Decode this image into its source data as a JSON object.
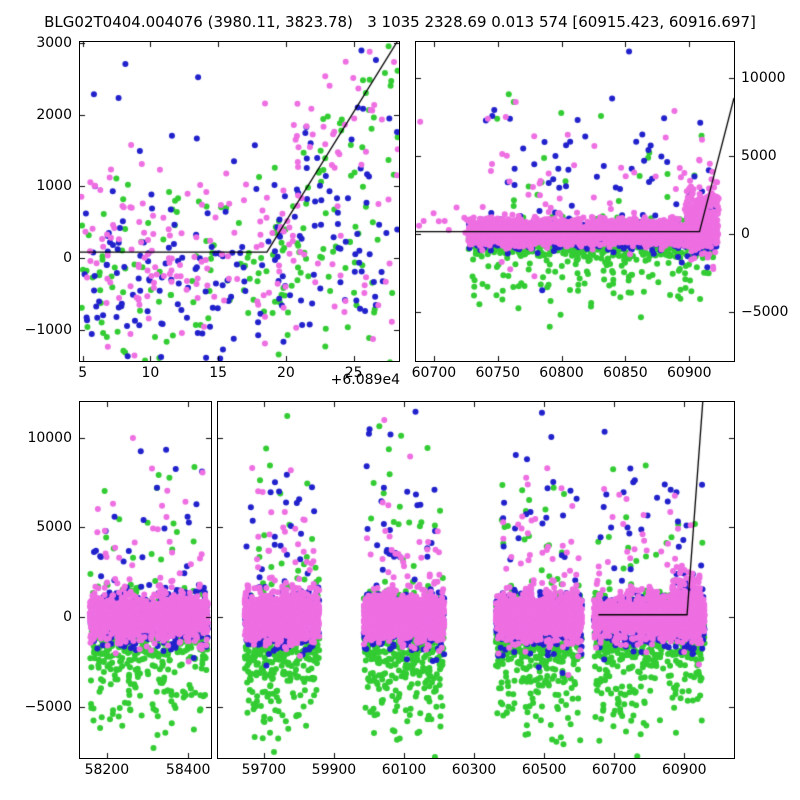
{
  "title": "BLG02T0404.004076 (3980.11, 3823.78)   3 1035 2328.69 0.013 574 [60915.423, 60916.697]",
  "colors": {
    "blue": "#2121cc",
    "green": "#33cc33",
    "violet": "#ee6fe2",
    "line": "#000000",
    "frame": "#000000",
    "background": "#ffffff"
  },
  "chart_data": [
    {
      "id": "panel-tl",
      "name": "event-zoom-panel",
      "type": "scatter",
      "seed": 7,
      "marker_radius": 3,
      "xlim": [
        60894.8,
        60918.35
      ],
      "ylim": [
        -1438,
        3015
      ],
      "xlabel_offset": "+6.089e4",
      "xticks": {
        "values": [
          60895,
          60900,
          60905,
          60910,
          60915
        ],
        "labels": [
          "5",
          "10",
          "15",
          "20",
          "25"
        ]
      },
      "yticks": {
        "side": "left",
        "values": [
          -1000,
          0,
          1000,
          2000,
          3000
        ],
        "labels": [
          "−1000",
          "0",
          "1000",
          "2000",
          "3000"
        ]
      },
      "model_line": [
        [
          60894.8,
          83
        ],
        [
          60908.6,
          83
        ],
        [
          60918.35,
          3060
        ]
      ],
      "clusters": [
        {
          "color": "green",
          "n": 165,
          "x": [
            60894.9,
            60918.3
          ],
          "y_mu": -350,
          "y_sigma": 700,
          "follow": 0.35
        },
        {
          "color": "green",
          "n": 30,
          "x": [
            60909,
            60918.3
          ],
          "y_mu": -500,
          "y_sigma": 600
        },
        {
          "color": "blue",
          "n": 165,
          "x": [
            60894.9,
            60918.3
          ],
          "y_mu": -250,
          "y_sigma": 700,
          "follow": 0.35
        },
        {
          "color": "blue",
          "n": 30,
          "x": [
            60909,
            60918.3
          ],
          "y_mu": -350,
          "y_sigma": 600
        },
        {
          "color": "blue",
          "n": 5,
          "x": [
            60895.5,
            60906
          ],
          "y_mu": 2200,
          "y_sigma": 350
        },
        {
          "color": "violet",
          "n": 170,
          "x": [
            60894.9,
            60918.3
          ],
          "y_mu": -80,
          "y_sigma": 700,
          "follow": 0.35
        },
        {
          "color": "violet",
          "n": 22,
          "x": [
            60895,
            60912
          ],
          "y_mu": 1100,
          "y_sigma": 520
        },
        {
          "color": "violet",
          "n": 25,
          "x": [
            60909,
            60918.3
          ],
          "y_mu": -200,
          "y_sigma": 700
        }
      ]
    },
    {
      "id": "panel-tr",
      "name": "current-season-panel",
      "type": "scatter",
      "seed": 13,
      "marker_radius": 3,
      "xlim": [
        60686,
        60935
      ],
      "ylim": [
        -8175,
        12290
      ],
      "xticks": {
        "values": [
          60700,
          60750,
          60800,
          60850,
          60900
        ],
        "labels": [
          "60700",
          "60750",
          "60800",
          "60850",
          "60900"
        ]
      },
      "yticks": {
        "side": "right",
        "values": [
          -5000,
          0,
          5000,
          10000
        ],
        "labels": [
          "−5000",
          "0",
          "5000",
          "10000"
        ]
      },
      "model_line": [
        [
          60686,
          130
        ],
        [
          60908,
          130
        ],
        [
          60935,
          8700
        ]
      ],
      "clusters": [
        {
          "color": "green",
          "n": 640,
          "x": [
            60727,
            60922
          ],
          "y_mu": -450,
          "y_sigma": 650
        },
        {
          "color": "green",
          "n": 130,
          "x": [
            60730,
            60922
          ],
          "y_mu": -2600,
          "y_sigma": 1400
        },
        {
          "color": "green",
          "n": 25,
          "x": [
            60740,
            60920
          ],
          "y_mu": 3500,
          "y_sigma": 2600
        },
        {
          "color": "blue",
          "n": 850,
          "x": [
            60727,
            60922
          ],
          "y_mu": -120,
          "y_sigma": 430
        },
        {
          "color": "blue",
          "n": 60,
          "x": [
            60740,
            60920
          ],
          "y_mu": 3800,
          "y_sigma": 3000
        },
        {
          "color": "blue",
          "n": 120,
          "x": [
            60898,
            60920
          ],
          "y_mu": 500,
          "y_sigma": 900
        },
        {
          "color": "violet",
          "n": 10,
          "x": [
            60687,
            60726
          ],
          "y_mu": 900,
          "y_sigma": 500
        },
        {
          "color": "violet",
          "n": 1,
          "x": [
            60688,
            60691
          ],
          "y_mu": 7300,
          "y_sigma": 100
        },
        {
          "color": "violet",
          "n": 2400,
          "x": [
            60727,
            60922
          ],
          "y_mu": 60,
          "y_sigma": 380
        },
        {
          "color": "violet",
          "n": 75,
          "x": [
            60735,
            60922
          ],
          "y_mu": 2800,
          "y_sigma": 2600
        },
        {
          "color": "violet",
          "n": 220,
          "x": [
            60897,
            60923
          ],
          "y_mu": 900,
          "y_sigma": 1000
        }
      ]
    },
    {
      "id": "panel-b1",
      "name": "full-lightcurve-left-panel",
      "type": "scatter",
      "seed": 21,
      "marker_radius": 3,
      "xlim": [
        58134,
        58456
      ],
      "ylim": [
        -7861,
        12000
      ],
      "xticks": {
        "values": [
          58200,
          58400
        ],
        "labels": [
          "58200",
          "58400"
        ]
      },
      "yticks": {
        "side": "left",
        "values": [
          -5000,
          0,
          5000,
          10000
        ],
        "labels": [
          "−5000",
          "0",
          "5000",
          "10000"
        ]
      },
      "model_line": null,
      "clusters": [
        {
          "color": "green",
          "n": 420,
          "x": [
            58158,
            58448
          ],
          "y_mu": -800,
          "y_sigma": 1100
        },
        {
          "color": "green",
          "n": 110,
          "x": [
            58160,
            58445
          ],
          "y_mu": -3800,
          "y_sigma": 1500
        },
        {
          "color": "green",
          "n": 20,
          "x": [
            58165,
            58440
          ],
          "y_mu": 4500,
          "y_sigma": 3000
        },
        {
          "color": "blue",
          "n": 520,
          "x": [
            58158,
            58448
          ],
          "y_mu": -180,
          "y_sigma": 700
        },
        {
          "color": "blue",
          "n": 30,
          "x": [
            58165,
            58440
          ],
          "y_mu": 4500,
          "y_sigma": 3200
        },
        {
          "color": "violet",
          "n": 1150,
          "x": [
            58158,
            58448
          ],
          "y_mu": 0,
          "y_sigma": 620
        },
        {
          "color": "violet",
          "n": 45,
          "x": [
            58165,
            58440
          ],
          "y_mu": 2800,
          "y_sigma": 2700
        }
      ]
    },
    {
      "id": "panel-b2",
      "name": "full-lightcurve-right-panel",
      "type": "scatter",
      "seed": 29,
      "marker_radius": 3,
      "xlim": [
        59569,
        61042
      ],
      "ylim": [
        -7861,
        12000
      ],
      "xticks": {
        "values": [
          59700,
          59900,
          60100,
          60300,
          60500,
          60700,
          60900
        ],
        "labels": [
          "59700",
          "59900",
          "60100",
          "60300",
          "60500",
          "60700",
          "60900"
        ]
      },
      "yticks": {
        "side": "none",
        "values": [
          -5000,
          0,
          5000,
          10000
        ],
        "labels": []
      },
      "model_line": [
        [
          60655,
          130
        ],
        [
          60908,
          130
        ],
        [
          60953,
          12050
        ]
      ],
      "clusters": [
        {
          "color": "green",
          "n": 400,
          "x": [
            59645,
            59858
          ],
          "y_mu": -800,
          "y_sigma": 1100
        },
        {
          "color": "green",
          "n": 110,
          "x": [
            59648,
            59855
          ],
          "y_mu": -3800,
          "y_sigma": 1500
        },
        {
          "color": "green",
          "n": 20,
          "x": [
            59650,
            59850
          ],
          "y_mu": 4500,
          "y_sigma": 3000
        },
        {
          "color": "blue",
          "n": 560,
          "x": [
            59645,
            59858
          ],
          "y_mu": -180,
          "y_sigma": 700
        },
        {
          "color": "blue",
          "n": 30,
          "x": [
            59650,
            59850
          ],
          "y_mu": 4500,
          "y_sigma": 3200
        },
        {
          "color": "violet",
          "n": 1200,
          "x": [
            59645,
            59858
          ],
          "y_mu": 0,
          "y_sigma": 620
        },
        {
          "color": "violet",
          "n": 45,
          "x": [
            59650,
            59850
          ],
          "y_mu": 2800,
          "y_sigma": 2700
        },
        {
          "color": "green",
          "n": 400,
          "x": [
            59985,
            60215
          ],
          "y_mu": -800,
          "y_sigma": 1100
        },
        {
          "color": "green",
          "n": 110,
          "x": [
            59988,
            60212
          ],
          "y_mu": -3800,
          "y_sigma": 1500
        },
        {
          "color": "green",
          "n": 20,
          "x": [
            59990,
            60210
          ],
          "y_mu": 4500,
          "y_sigma": 3000
        },
        {
          "color": "blue",
          "n": 560,
          "x": [
            59985,
            60215
          ],
          "y_mu": -180,
          "y_sigma": 700
        },
        {
          "color": "blue",
          "n": 30,
          "x": [
            59990,
            60210
          ],
          "y_mu": 4500,
          "y_sigma": 3200
        },
        {
          "color": "violet",
          "n": 1200,
          "x": [
            59985,
            60215
          ],
          "y_mu": 0,
          "y_sigma": 620
        },
        {
          "color": "violet",
          "n": 45,
          "x": [
            59990,
            60210
          ],
          "y_mu": 2800,
          "y_sigma": 2700
        },
        {
          "color": "green",
          "n": 400,
          "x": [
            60362,
            60608
          ],
          "y_mu": -800,
          "y_sigma": 1100
        },
        {
          "color": "green",
          "n": 110,
          "x": [
            60365,
            60605
          ],
          "y_mu": -3800,
          "y_sigma": 1500
        },
        {
          "color": "green",
          "n": 20,
          "x": [
            60368,
            60602
          ],
          "y_mu": 4500,
          "y_sigma": 3000
        },
        {
          "color": "blue",
          "n": 560,
          "x": [
            60362,
            60608
          ],
          "y_mu": -180,
          "y_sigma": 700
        },
        {
          "color": "blue",
          "n": 30,
          "x": [
            60368,
            60602
          ],
          "y_mu": 4500,
          "y_sigma": 3200
        },
        {
          "color": "violet",
          "n": 1200,
          "x": [
            60362,
            60608
          ],
          "y_mu": 0,
          "y_sigma": 620
        },
        {
          "color": "violet",
          "n": 45,
          "x": [
            60368,
            60602
          ],
          "y_mu": 2800,
          "y_sigma": 2700
        },
        {
          "color": "green",
          "n": 450,
          "x": [
            60642,
            60958
          ],
          "y_mu": -800,
          "y_sigma": 1100
        },
        {
          "color": "green",
          "n": 115,
          "x": [
            60645,
            60955
          ],
          "y_mu": -3800,
          "y_sigma": 1500
        },
        {
          "color": "green",
          "n": 22,
          "x": [
            60648,
            60952
          ],
          "y_mu": 4500,
          "y_sigma": 3000
        },
        {
          "color": "blue",
          "n": 560,
          "x": [
            60642,
            60958
          ],
          "y_mu": -180,
          "y_sigma": 700
        },
        {
          "color": "blue",
          "n": 32,
          "x": [
            60648,
            60952
          ],
          "y_mu": 4500,
          "y_sigma": 3200
        },
        {
          "color": "blue",
          "n": 80,
          "x": [
            60875,
            60940
          ],
          "y_mu": 400,
          "y_sigma": 900
        },
        {
          "color": "violet",
          "n": 1200,
          "x": [
            60642,
            60958
          ],
          "y_mu": 0,
          "y_sigma": 620
        },
        {
          "color": "violet",
          "n": 48,
          "x": [
            60648,
            60952
          ],
          "y_mu": 2800,
          "y_sigma": 2700
        },
        {
          "color": "violet",
          "n": 190,
          "x": [
            60865,
            60945
          ],
          "y_mu": 800,
          "y_sigma": 900
        }
      ]
    }
  ]
}
